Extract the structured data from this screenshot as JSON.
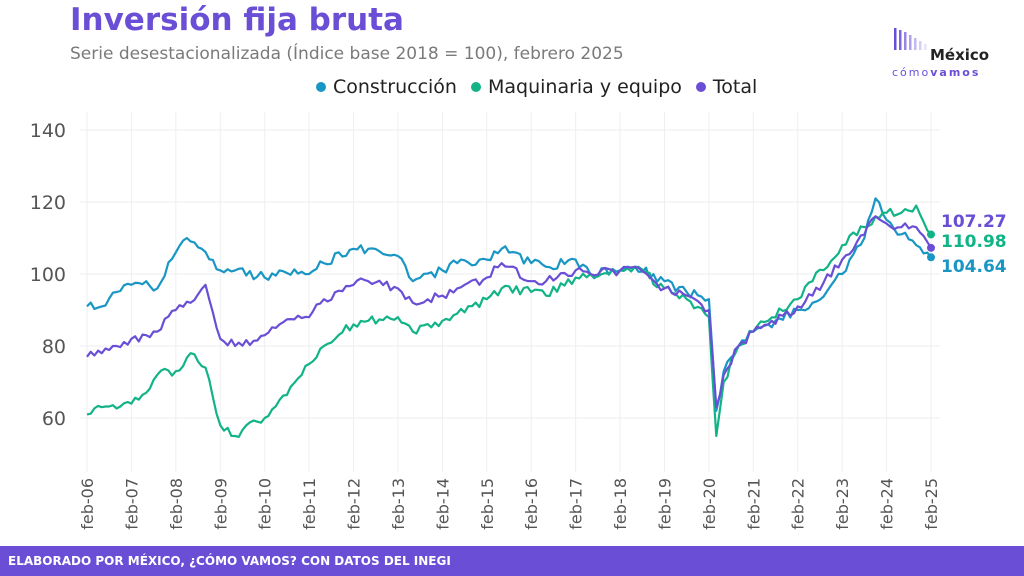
{
  "header": {
    "title": "Inversión fija bruta",
    "subtitle": "Serie desestacionalizada (Índice base 2018 = 100), febrero 2025"
  },
  "logo": {
    "name": "México",
    "tagline_a": "cómo",
    "tagline_b": "vamos"
  },
  "footer": {
    "text": "ELABORADO POR MÉXICO, ¿CÓMO VAMOS? CON DATOS DEL INEGI"
  },
  "chart_data": {
    "type": "line",
    "title": "Inversión fija bruta",
    "subtitle": "Serie desestacionalizada (Índice base 2018 = 100), febrero 2025",
    "xlabel": "",
    "ylabel": "",
    "ylim": [
      45,
      145
    ],
    "yticks": [
      60,
      80,
      100,
      120,
      140
    ],
    "grid": true,
    "legend_position": "top",
    "x_start": "2006-02",
    "x_end": "2025-02",
    "xtick_labels": [
      "feb-06",
      "feb-07",
      "feb-08",
      "feb-09",
      "feb-10",
      "feb-11",
      "feb-12",
      "feb-13",
      "feb-14",
      "feb-15",
      "feb-16",
      "feb-17",
      "feb-18",
      "feb-19",
      "feb-20",
      "feb-21",
      "feb-22",
      "feb-23",
      "feb-24",
      "feb-25"
    ],
    "series": [
      {
        "name": "Construcción",
        "color": "#1a96c4",
        "last_label": "104.64",
        "anchors": [
          [
            "2006-02",
            91
          ],
          [
            "2006-06",
            91
          ],
          [
            "2006-10",
            95
          ],
          [
            "2007-02",
            97
          ],
          [
            "2007-06",
            98
          ],
          [
            "2007-09",
            96
          ],
          [
            "2008-02",
            106
          ],
          [
            "2008-05",
            110
          ],
          [
            "2008-09",
            107
          ],
          [
            "2009-02",
            101
          ],
          [
            "2009-06",
            101
          ],
          [
            "2010-02",
            99
          ],
          [
            "2010-06",
            101
          ],
          [
            "2011-02",
            100
          ],
          [
            "2011-06",
            103
          ],
          [
            "2012-02",
            107
          ],
          [
            "2012-06",
            107
          ],
          [
            "2013-02",
            105
          ],
          [
            "2013-06",
            98
          ],
          [
            "2014-02",
            101
          ],
          [
            "2014-06",
            103
          ],
          [
            "2015-02",
            104
          ],
          [
            "2015-06",
            107
          ],
          [
            "2016-02",
            103
          ],
          [
            "2016-06",
            102
          ],
          [
            "2017-02",
            104
          ],
          [
            "2017-06",
            100
          ],
          [
            "2018-02",
            101
          ],
          [
            "2018-06",
            102
          ],
          [
            "2019-02",
            98
          ],
          [
            "2019-08",
            95
          ],
          [
            "2020-02",
            93
          ],
          [
            "2020-04",
            62
          ],
          [
            "2020-06",
            73
          ],
          [
            "2020-10",
            80
          ],
          [
            "2021-02",
            84
          ],
          [
            "2021-06",
            86
          ],
          [
            "2022-02",
            90
          ],
          [
            "2022-06",
            92
          ],
          [
            "2023-02",
            100
          ],
          [
            "2023-08",
            110
          ],
          [
            "2023-11",
            121
          ],
          [
            "2024-02",
            115
          ],
          [
            "2024-06",
            111
          ],
          [
            "2024-10",
            108
          ],
          [
            "2025-02",
            104.64
          ]
        ]
      },
      {
        "name": "Maquinaria y equipo",
        "color": "#12b386",
        "last_label": "110.98",
        "anchors": [
          [
            "2006-02",
            61
          ],
          [
            "2006-06",
            63
          ],
          [
            "2007-02",
            64
          ],
          [
            "2007-06",
            67
          ],
          [
            "2007-09",
            72
          ],
          [
            "2008-02",
            73
          ],
          [
            "2008-06",
            78
          ],
          [
            "2008-10",
            74
          ],
          [
            "2009-02",
            58
          ],
          [
            "2009-06",
            55
          ],
          [
            "2010-02",
            60
          ],
          [
            "2010-06",
            65
          ],
          [
            "2011-02",
            75
          ],
          [
            "2011-06",
            80
          ],
          [
            "2012-02",
            86
          ],
          [
            "2012-06",
            87
          ],
          [
            "2013-02",
            88
          ],
          [
            "2013-06",
            84
          ],
          [
            "2014-02",
            87
          ],
          [
            "2014-06",
            89
          ],
          [
            "2015-02",
            93
          ],
          [
            "2015-06",
            96
          ],
          [
            "2016-02",
            95
          ],
          [
            "2016-06",
            94
          ],
          [
            "2017-02",
            99
          ],
          [
            "2017-06",
            100
          ],
          [
            "2018-02",
            101
          ],
          [
            "2018-06",
            102
          ],
          [
            "2019-02",
            96
          ],
          [
            "2019-08",
            93
          ],
          [
            "2020-02",
            88
          ],
          [
            "2020-04",
            55
          ],
          [
            "2020-06",
            70
          ],
          [
            "2020-10",
            80
          ],
          [
            "2021-02",
            84
          ],
          [
            "2021-06",
            87
          ],
          [
            "2022-02",
            93
          ],
          [
            "2022-06",
            98
          ],
          [
            "2023-02",
            108
          ],
          [
            "2023-08",
            113
          ],
          [
            "2023-11",
            116
          ],
          [
            "2024-02",
            117
          ],
          [
            "2024-06",
            117
          ],
          [
            "2024-10",
            119
          ],
          [
            "2025-02",
            110.98
          ]
        ]
      },
      {
        "name": "Total",
        "color": "#6a4fd6",
        "last_label": "107.27",
        "anchors": [
          [
            "2006-02",
            77
          ],
          [
            "2006-06",
            78
          ],
          [
            "2006-10",
            80
          ],
          [
            "2007-02",
            82
          ],
          [
            "2007-06",
            83
          ],
          [
            "2007-09",
            84
          ],
          [
            "2008-02",
            90
          ],
          [
            "2008-06",
            92
          ],
          [
            "2008-10",
            97
          ],
          [
            "2009-02",
            82
          ],
          [
            "2009-06",
            80
          ],
          [
            "2010-02",
            83
          ],
          [
            "2010-06",
            86
          ],
          [
            "2011-02",
            88
          ],
          [
            "2011-06",
            93
          ],
          [
            "2012-02",
            97
          ],
          [
            "2012-06",
            98
          ],
          [
            "2013-02",
            96
          ],
          [
            "2013-06",
            92
          ],
          [
            "2014-02",
            94
          ],
          [
            "2014-06",
            96
          ],
          [
            "2015-02",
            99
          ],
          [
            "2015-06",
            103
          ],
          [
            "2016-02",
            98
          ],
          [
            "2016-06",
            98
          ],
          [
            "2017-02",
            101
          ],
          [
            "2017-06",
            100
          ],
          [
            "2018-02",
            101
          ],
          [
            "2018-06",
            102
          ],
          [
            "2019-02",
            96
          ],
          [
            "2019-08",
            94
          ],
          [
            "2020-02",
            90
          ],
          [
            "2020-04",
            63
          ],
          [
            "2020-06",
            72
          ],
          [
            "2020-10",
            80
          ],
          [
            "2021-02",
            84
          ],
          [
            "2021-06",
            86
          ],
          [
            "2022-02",
            91
          ],
          [
            "2022-06",
            94
          ],
          [
            "2023-02",
            104
          ],
          [
            "2023-08",
            111
          ],
          [
            "2023-11",
            116
          ],
          [
            "2024-02",
            114
          ],
          [
            "2024-06",
            113
          ],
          [
            "2024-10",
            113
          ],
          [
            "2025-02",
            107.27
          ]
        ]
      }
    ]
  }
}
